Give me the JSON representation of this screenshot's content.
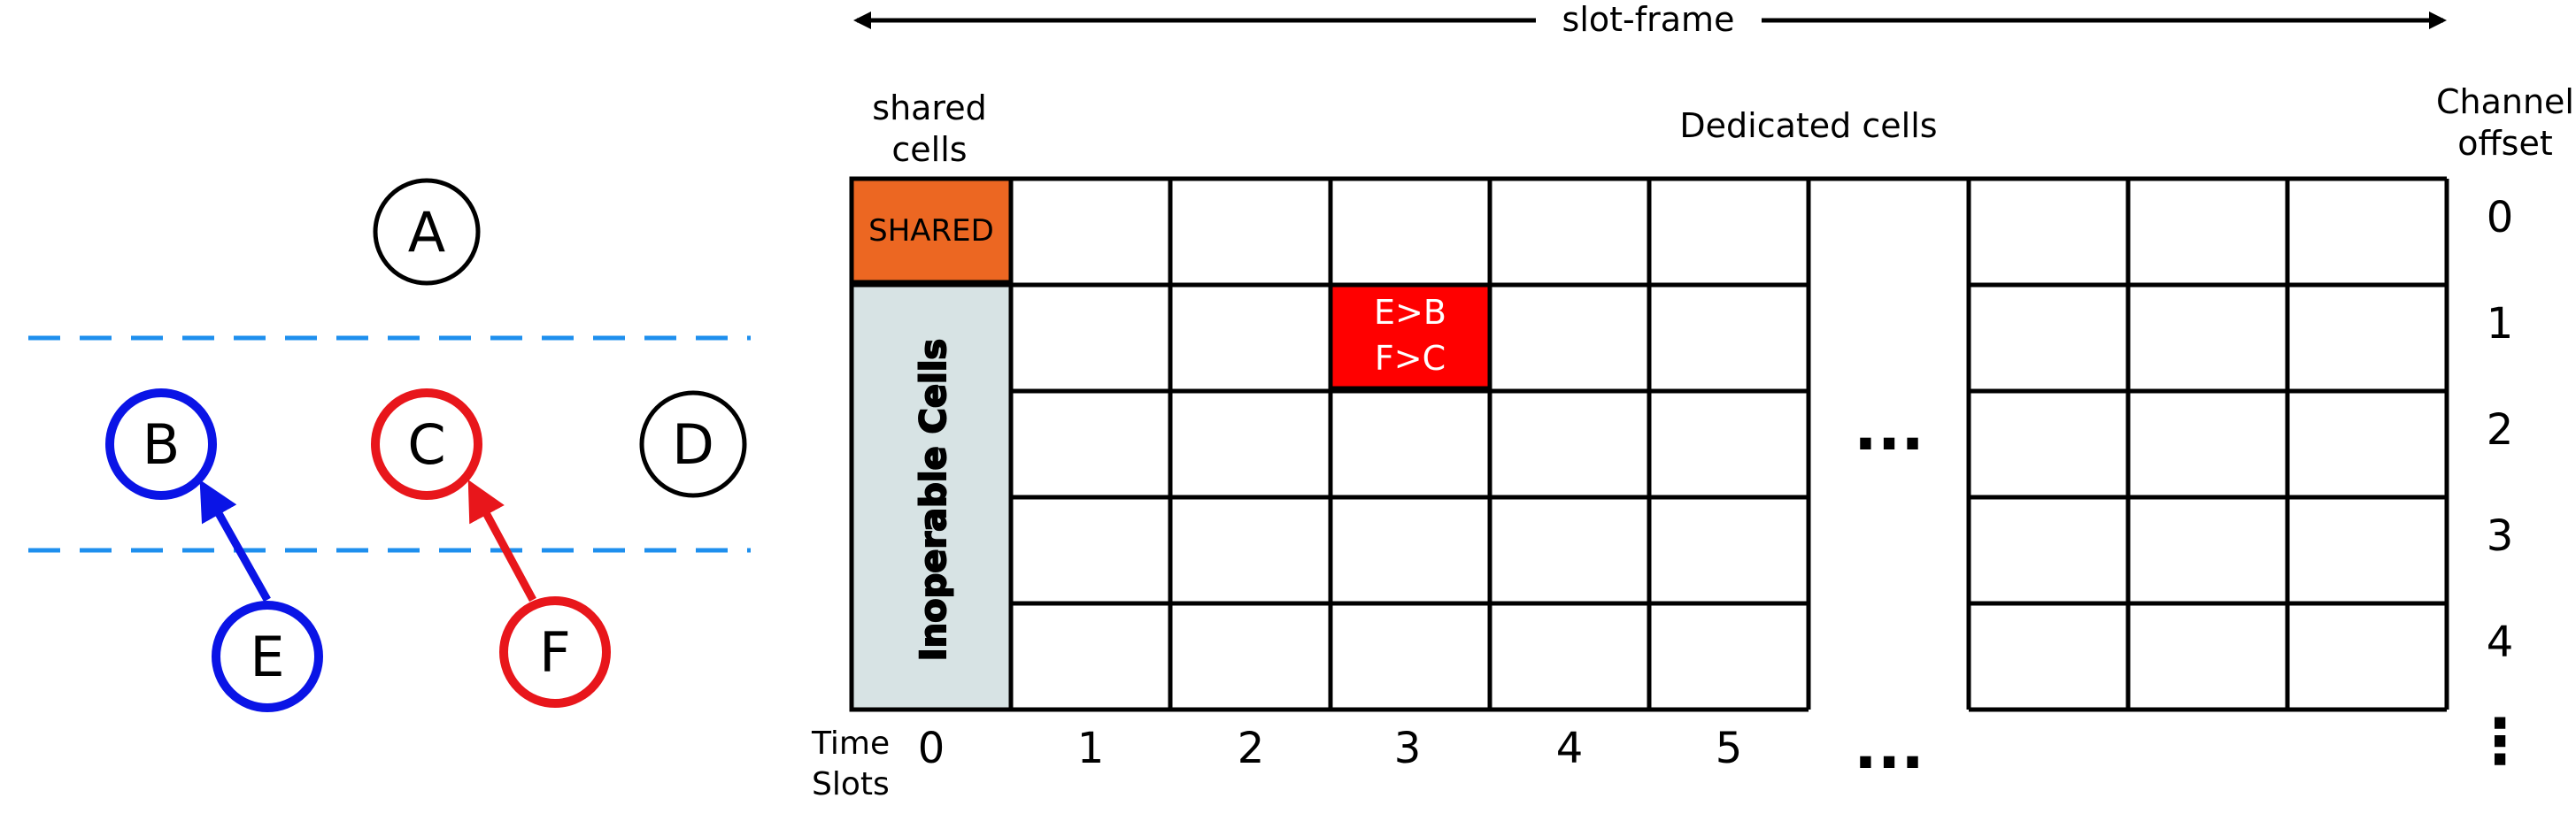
{
  "colors": {
    "ink": "#000000",
    "blue": "#0a14e6",
    "red": "#e8161b",
    "shared_fill": "#ec6722",
    "inoperable_fill": "#d7e3e4",
    "dedicated_fill": "#ff0000",
    "dash": "#1e8fee"
  },
  "topology": {
    "nodes": [
      {
        "id": "A",
        "label": "A",
        "color": "ink"
      },
      {
        "id": "B",
        "label": "B",
        "color": "blue"
      },
      {
        "id": "C",
        "label": "C",
        "color": "red"
      },
      {
        "id": "D",
        "label": "D",
        "color": "ink"
      },
      {
        "id": "E",
        "label": "E",
        "color": "blue"
      },
      {
        "id": "F",
        "label": "F",
        "color": "red"
      }
    ],
    "links": [
      {
        "from": "E",
        "to": "B",
        "color": "blue"
      },
      {
        "from": "F",
        "to": "C",
        "color": "red"
      }
    ]
  },
  "slotframe": {
    "header_label": "slot-frame",
    "shared_header": [
      "shared",
      "cells"
    ],
    "dedicated_header": "Dedicated cells",
    "channel_header": [
      "Channel",
      "offset"
    ],
    "time_header": [
      "Time",
      "Slots"
    ],
    "shared_cell_label": "SHARED",
    "inoperable_label": "Inoperable Cells",
    "dedicated_cell_lines": [
      "E>B",
      "F>C"
    ],
    "ellipsis": "...",
    "vertical_ellipsis": "⋮",
    "time_slots": [
      "0",
      "1",
      "2",
      "3",
      "4",
      "5"
    ],
    "channel_offsets": [
      "0",
      "1",
      "2",
      "3",
      "4"
    ]
  }
}
